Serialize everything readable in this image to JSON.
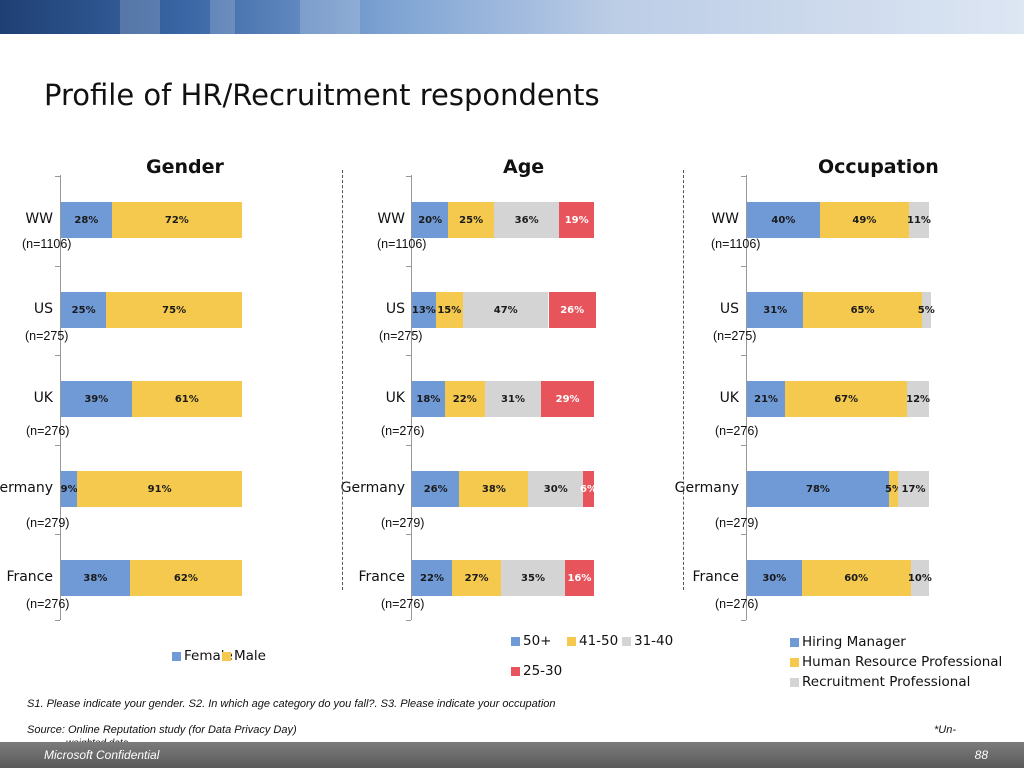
{
  "slide": {
    "title": "Profile of HR/Recruitment respondents",
    "question_note": "S1. Please indicate your gender. S2. In which age category do you fall?. S3. Please indicate your occupation",
    "source_note": "Source: Online Reputation study (for Data Privacy Day)",
    "unweighted_note_part1": "*Un-",
    "unweighted_note_part2": "weighted data",
    "footer_confidential": "Microsoft Confidential",
    "page_number": "88"
  },
  "chart_data": [
    {
      "type": "bar",
      "orientation": "horizontal",
      "stacked": "percent",
      "title": "Gender",
      "categories": [
        "WW",
        "US",
        "UK",
        "Germany",
        "France"
      ],
      "sample_sizes": [
        "(n=1106)",
        "(n=275)",
        "(n=276)",
        "(n=279)",
        "(n=276)"
      ],
      "series": [
        {
          "name": "Female",
          "color": "#6f9ad6",
          "values": [
            28,
            25,
            39,
            9,
            38
          ]
        },
        {
          "name": "Male",
          "color": "#f4c94e",
          "values": [
            72,
            75,
            61,
            91,
            62
          ]
        }
      ],
      "legend": "bottom",
      "grid": false
    },
    {
      "type": "bar",
      "orientation": "horizontal",
      "stacked": "percent",
      "title": "Age",
      "categories": [
        "WW",
        "US",
        "UK",
        "Germany",
        "France"
      ],
      "sample_sizes": [
        "(n=1106)",
        "(n=275)",
        "(n=276)",
        "(n=279)",
        "(n=276)"
      ],
      "series": [
        {
          "name": "50+",
          "color": "#6f9ad6",
          "values": [
            20,
            13,
            18,
            26,
            22
          ]
        },
        {
          "name": "41-50",
          "color": "#f4c94e",
          "values": [
            25,
            15,
            22,
            38,
            27
          ]
        },
        {
          "name": "31-40",
          "color": "#d4d4d4",
          "values": [
            36,
            47,
            31,
            30,
            35
          ]
        },
        {
          "name": "25-30",
          "color": "#e8545c",
          "values": [
            19,
            26,
            29,
            6,
            16
          ]
        }
      ],
      "legend": "bottom",
      "grid": false
    },
    {
      "type": "bar",
      "orientation": "horizontal",
      "stacked": "percent",
      "title": "Occupation",
      "categories": [
        "WW",
        "US",
        "UK",
        "Germany",
        "France"
      ],
      "sample_sizes": [
        "(n=1106)",
        "(n=275)",
        "(n=276)",
        "(n=279)",
        "(n=276)"
      ],
      "series": [
        {
          "name": "Hiring Manager",
          "color": "#6f9ad6",
          "values": [
            40,
            31,
            21,
            78,
            30
          ]
        },
        {
          "name": "Human Resource Professional",
          "color": "#f4c94e",
          "values": [
            49,
            65,
            67,
            5,
            60
          ]
        },
        {
          "name": "Recruitment Professional",
          "color": "#d4d4d4",
          "values": [
            11,
            5,
            12,
            17,
            10
          ]
        }
      ],
      "legend": "bottom",
      "grid": false
    }
  ]
}
